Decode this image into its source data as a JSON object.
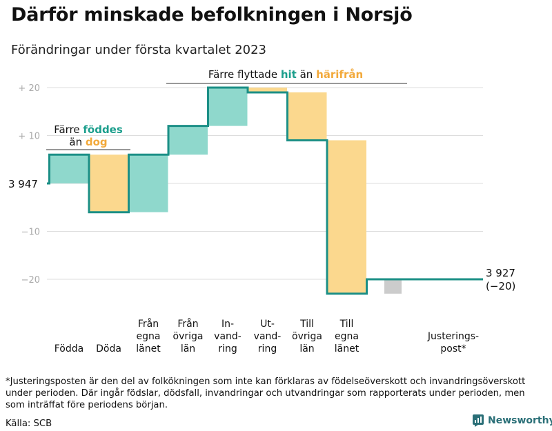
{
  "header": {
    "title": "Därför minskade befolkningen i Norsjö",
    "subtitle": "Förändringar under första kvartalet 2023"
  },
  "colors": {
    "positive": "#8fd8cc",
    "negative": "#fbd88e",
    "adjustment": "#cccccc",
    "line": "#1b8f86",
    "teal_text": "#1b9e8c",
    "orange_text": "#f2a93b",
    "grid": "#dddddd",
    "tick": "#aaaaaa"
  },
  "chart_data": {
    "type": "waterfall",
    "title": "Därför minskade befolkningen i Norsjö",
    "subtitle": "Förändringar under första kvartalet 2023",
    "start_value": 3947,
    "start_label": "3 947",
    "end_value": 3927,
    "end_label": "3 927",
    "end_change_label": "(−20)",
    "ylim": [
      -25,
      22
    ],
    "yticks": [
      20,
      10,
      -10,
      -20
    ],
    "ytick_labels": [
      "+ 20",
      "+ 10",
      "−10",
      "−20"
    ],
    "categories": [
      {
        "label": [
          "Födda"
        ],
        "change": 6,
        "kind": "positive"
      },
      {
        "label": [
          "Döda"
        ],
        "change": -12,
        "kind": "negative"
      },
      {
        "label": [
          "Från",
          "egna",
          "länet"
        ],
        "change": 12,
        "kind": "positive"
      },
      {
        "label": [
          "Från",
          "övriga",
          "län"
        ],
        "change": 6,
        "kind": "positive"
      },
      {
        "label": [
          "In-",
          "vand-",
          "ring"
        ],
        "change": 8,
        "kind": "positive"
      },
      {
        "label": [
          "Ut-",
          "vand-",
          "ring"
        ],
        "change": -1,
        "kind": "negative"
      },
      {
        "label": [
          "Till",
          "övriga",
          "län"
        ],
        "change": -10,
        "kind": "negative"
      },
      {
        "label": [
          "Till",
          "egna",
          "länet"
        ],
        "change": -32,
        "kind": "negative"
      },
      {
        "label": [
          "Justerings-",
          "post*"
        ],
        "change": 3,
        "kind": "adjustment"
      }
    ],
    "annotations": [
      {
        "id": "births",
        "parts": [
          [
            "Färre ",
            "plain"
          ],
          [
            "föddes",
            "teal"
          ]
        ],
        "line2": [
          [
            "än ",
            "plain"
          ],
          [
            "dog",
            "orange"
          ]
        ]
      },
      {
        "id": "migration",
        "parts": [
          [
            "Färre flyttade ",
            "plain"
          ],
          [
            "hit",
            "teal"
          ],
          [
            " än ",
            "plain"
          ],
          [
            "härifrån",
            "orange"
          ]
        ]
      }
    ]
  },
  "footer": {
    "footnote": "*Justeringsposten är den del av folkökningen som inte kan förklaras av födelseöverskott och invandringsöverskott under perioden. Där ingår födslar, dödsfall, invandringar och utvandringar som rapporterats under perioden, men som inträffat före periodens början.",
    "source": "Källa: SCB",
    "brand": "Newsworthy"
  }
}
